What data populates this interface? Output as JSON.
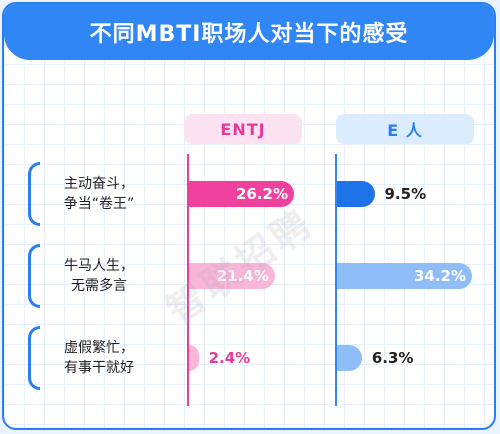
{
  "title": "不同MBTI职场人对当下的感受",
  "watermark": "智联招聘",
  "colors": {
    "entj_strong": "#f0419f",
    "entj_light": "#f9b6d9",
    "e_strong": "#1f73e8",
    "e_light": "#8fbdf7"
  },
  "chart_data": {
    "type": "bar",
    "orientation": "horizontal",
    "categories": [
      "主动奋斗，\n争当“卷王”",
      "牛马人生，\n无需多言",
      "虚假繁忙，\n有事干就好"
    ],
    "series": [
      {
        "name": "ENTJ",
        "values": [
          26.2,
          21.4,
          2.4
        ],
        "labels": [
          "26.2%",
          "21.4%",
          "2.4%"
        ]
      },
      {
        "name": "E 人",
        "values": [
          9.5,
          34.2,
          6.3
        ],
        "labels": [
          "9.5%",
          "34.2%",
          "6.3%"
        ]
      }
    ],
    "unit": "%"
  }
}
